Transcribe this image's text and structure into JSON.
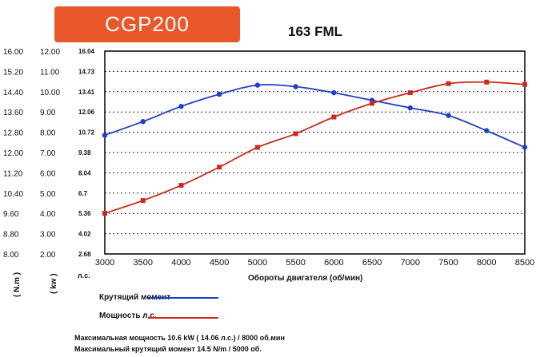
{
  "header": {
    "badge": "CGP200",
    "model": "163 FML"
  },
  "units": {
    "nm": "( N.m )",
    "kw": "( kw )",
    "lps": "л.с."
  },
  "chart_data": {
    "type": "line",
    "xlabel": "Обороты двигателя (об/мин)",
    "x": [
      3000,
      3500,
      4000,
      4500,
      5000,
      5500,
      6000,
      6500,
      7000,
      7500,
      8000,
      8500
    ],
    "xticks": [
      "3000",
      "3500",
      "4000",
      "4500",
      "5000",
      "5500",
      "6000",
      "6500",
      "7000",
      "7500",
      "8000",
      "8500"
    ],
    "xlim": [
      3000,
      8500
    ],
    "ylim": [
      2.68,
      16.04
    ],
    "yticks_hp": [
      "16.04",
      "14.73",
      "13.41",
      "12.06",
      "10.72",
      "9.38",
      "8.04",
      "6.7",
      "5.36",
      "4.02",
      "2.68"
    ],
    "yticks_kw": [
      "12.00",
      "11.00",
      "10.00",
      "9.00",
      "8.00",
      "7.00",
      "6.00",
      "5.00",
      "4.00",
      "3.00",
      "2.00"
    ],
    "yticks_nm": [
      "16.00",
      "15.20",
      "14.40",
      "13.60",
      "12.80",
      "12.00",
      "11.20",
      "10.40",
      "9.60",
      "8.80",
      "8.00"
    ],
    "grid": true,
    "series": [
      {
        "name": "Крутящий момент",
        "color": "#1f3fc8",
        "marker": "circle",
        "values": [
          10.5,
          11.4,
          12.4,
          13.2,
          13.8,
          13.7,
          13.3,
          12.8,
          12.3,
          11.8,
          10.8,
          9.7
        ]
      },
      {
        "name": "Мощность л.с.",
        "color": "#cc2a1c",
        "marker": "square",
        "values": [
          5.36,
          6.2,
          7.2,
          8.4,
          9.7,
          10.6,
          11.7,
          12.6,
          13.3,
          13.9,
          14.0,
          13.85
        ]
      }
    ]
  },
  "notes": [
    "Максимальная мощность 10.6 kW ( 14.06 л.с.)  / 8000 об.мин",
    "Максимальный крутящий момент 14.5 N/m / 5000 об."
  ]
}
